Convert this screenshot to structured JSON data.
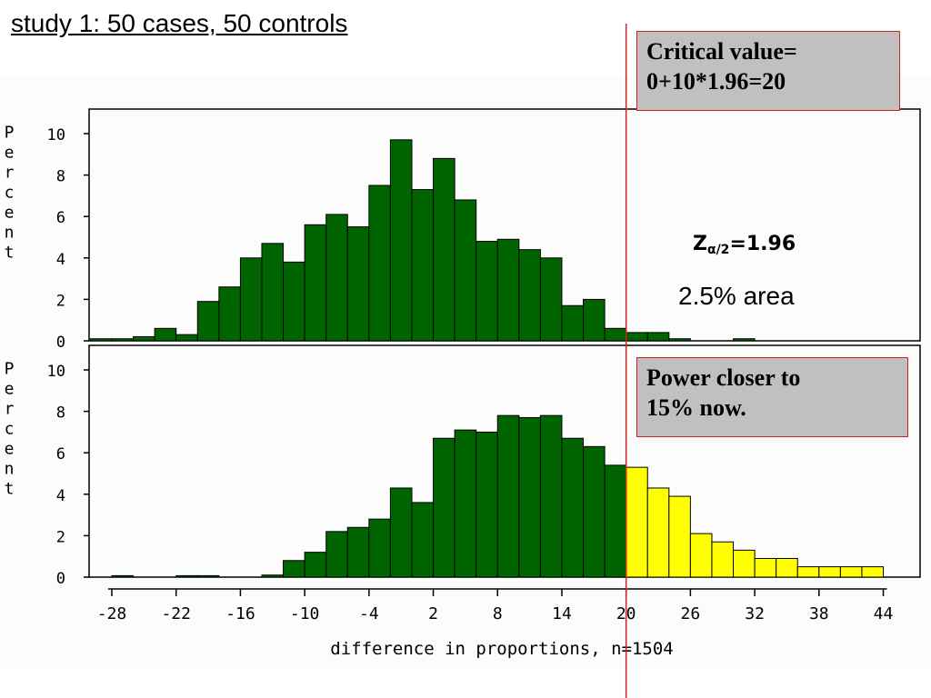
{
  "title": "study 1: 50 cases, 50 controls",
  "callout_critical": {
    "line1": "Critical value=",
    "line2": "0+10*1.96=20"
  },
  "z_label": {
    "z": "Z",
    "subscript": "α/2",
    "value": "=1.96"
  },
  "area_label": "2.5% area",
  "callout_power": {
    "line1": "Power closer to",
    "line2": "15% now."
  },
  "colors": {
    "bar_fill": "#006400",
    "highlight_fill": "#ffff00",
    "critical_line": "#d02020",
    "callout_bg": "#c0c0c0"
  },
  "chart_data": [
    {
      "type": "bar",
      "ylabel": "Percent",
      "ylim": [
        0,
        10.5
      ],
      "yticks": [
        0,
        2,
        4,
        6,
        8,
        10
      ],
      "bin_width": 2,
      "bins": [
        {
          "x": -30,
          "y": 0.1
        },
        {
          "x": -28,
          "y": 0.1
        },
        {
          "x": -26,
          "y": 0.2
        },
        {
          "x": -24,
          "y": 0.6
        },
        {
          "x": -22,
          "y": 0.3
        },
        {
          "x": -20,
          "y": 1.9
        },
        {
          "x": -18,
          "y": 2.6
        },
        {
          "x": -16,
          "y": 4.0
        },
        {
          "x": -14,
          "y": 4.7
        },
        {
          "x": -12,
          "y": 3.8
        },
        {
          "x": -10,
          "y": 5.6
        },
        {
          "x": -8,
          "y": 6.1
        },
        {
          "x": -6,
          "y": 5.5
        },
        {
          "x": -4,
          "y": 7.5
        },
        {
          "x": -2,
          "y": 9.7
        },
        {
          "x": 0,
          "y": 7.3
        },
        {
          "x": 2,
          "y": 8.8
        },
        {
          "x": 4,
          "y": 6.8
        },
        {
          "x": 6,
          "y": 4.8
        },
        {
          "x": 8,
          "y": 4.9
        },
        {
          "x": 10,
          "y": 4.4
        },
        {
          "x": 12,
          "y": 4.0
        },
        {
          "x": 14,
          "y": 1.7
        },
        {
          "x": 16,
          "y": 2.0
        },
        {
          "x": 18,
          "y": 0.6
        },
        {
          "x": 20,
          "y": 0.4
        },
        {
          "x": 22,
          "y": 0.4
        },
        {
          "x": 24,
          "y": 0.1
        },
        {
          "x": 30,
          "y": 0.1
        }
      ]
    },
    {
      "type": "bar",
      "ylabel": "Percent",
      "xlabel": "difference in proportions, n=1504",
      "ylim": [
        0,
        10.5
      ],
      "yticks": [
        0,
        2,
        4,
        6,
        8,
        10
      ],
      "xticks": [
        -28,
        -22,
        -16,
        -10,
        -4,
        2,
        8,
        14,
        20,
        26,
        32,
        38,
        44
      ],
      "critical_value": 20,
      "bin_width": 2,
      "bins": [
        {
          "x": -28,
          "y": 0.07
        },
        {
          "x": -22,
          "y": 0.07
        },
        {
          "x": -20,
          "y": 0.07
        },
        {
          "x": -14,
          "y": 0.1
        },
        {
          "x": -12,
          "y": 0.8
        },
        {
          "x": -10,
          "y": 1.2
        },
        {
          "x": -8,
          "y": 2.2
        },
        {
          "x": -6,
          "y": 2.4
        },
        {
          "x": -4,
          "y": 2.8
        },
        {
          "x": -2,
          "y": 4.3
        },
        {
          "x": 0,
          "y": 3.6
        },
        {
          "x": 2,
          "y": 6.7
        },
        {
          "x": 4,
          "y": 7.1
        },
        {
          "x": 6,
          "y": 7.0
        },
        {
          "x": 8,
          "y": 7.8
        },
        {
          "x": 10,
          "y": 7.7
        },
        {
          "x": 12,
          "y": 7.8
        },
        {
          "x": 14,
          "y": 6.7
        },
        {
          "x": 16,
          "y": 6.3
        },
        {
          "x": 18,
          "y": 5.4
        },
        {
          "x": 20,
          "y": 5.3
        },
        {
          "x": 22,
          "y": 4.3
        },
        {
          "x": 24,
          "y": 3.9
        },
        {
          "x": 26,
          "y": 2.1
        },
        {
          "x": 28,
          "y": 1.7
        },
        {
          "x": 30,
          "y": 1.3
        },
        {
          "x": 32,
          "y": 0.9
        },
        {
          "x": 34,
          "y": 0.9
        },
        {
          "x": 36,
          "y": 0.5
        },
        {
          "x": 38,
          "y": 0.5
        },
        {
          "x": 40,
          "y": 0.5
        },
        {
          "x": 42,
          "y": 0.5
        }
      ]
    }
  ]
}
